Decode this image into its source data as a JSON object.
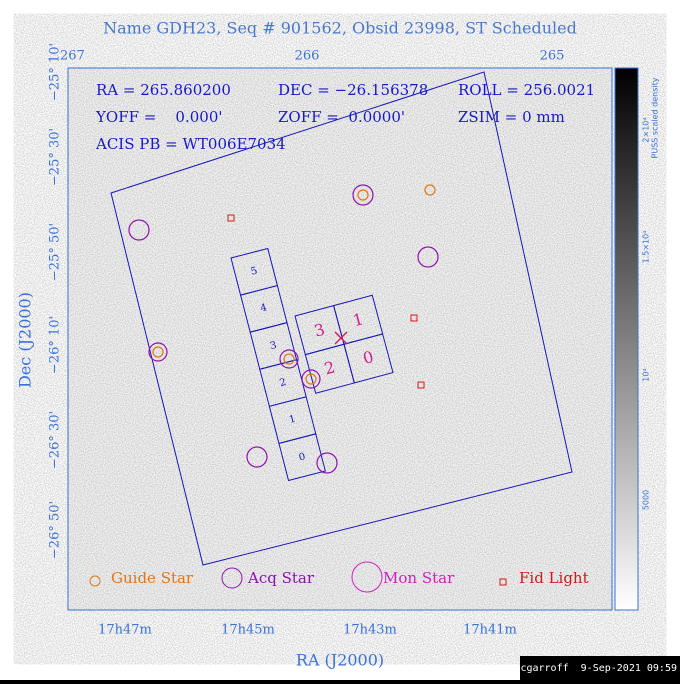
{
  "title": "Name GDH23, Seq # 901562, Obsid 23998, ST Scheduled",
  "info": [
    "RA = 265.860200",
    "DEC = −26.156378",
    "ROLL = 256.0021",
    "YOFF =    0.000'",
    "ZOFF =  0.0000'",
    "ZSIM = 0 mm",
    "ACIS PB = WT006E7034"
  ],
  "top_ticks": [
    "267",
    "266",
    "265"
  ],
  "left_ticks": [
    "−25° 10'",
    "−25° 30'",
    "−25° 50'",
    "−26° 10'",
    "−26° 30'",
    "−26° 50'"
  ],
  "bottom_ticks": [
    "17h47m",
    "17h45m",
    "17h43m",
    "17h41m"
  ],
  "x_label": "RA (J2000)",
  "y_label": "Dec (J2000)",
  "legend": [
    "Guide Star",
    "Acq Star",
    "Mon Star",
    "Fid Light"
  ],
  "colorbar": {
    "label": "PUSS scaled density",
    "ticks": [
      "2×10⁴",
      "1.5×10⁴",
      "10⁴",
      "5000"
    ]
  },
  "s_chips": [
    "5",
    "4",
    "3",
    "2",
    "1",
    "0"
  ],
  "i_chips": [
    "3",
    "1",
    "2",
    "0"
  ],
  "footer": "cgarroff  9-Sep-2021 09:59"
}
